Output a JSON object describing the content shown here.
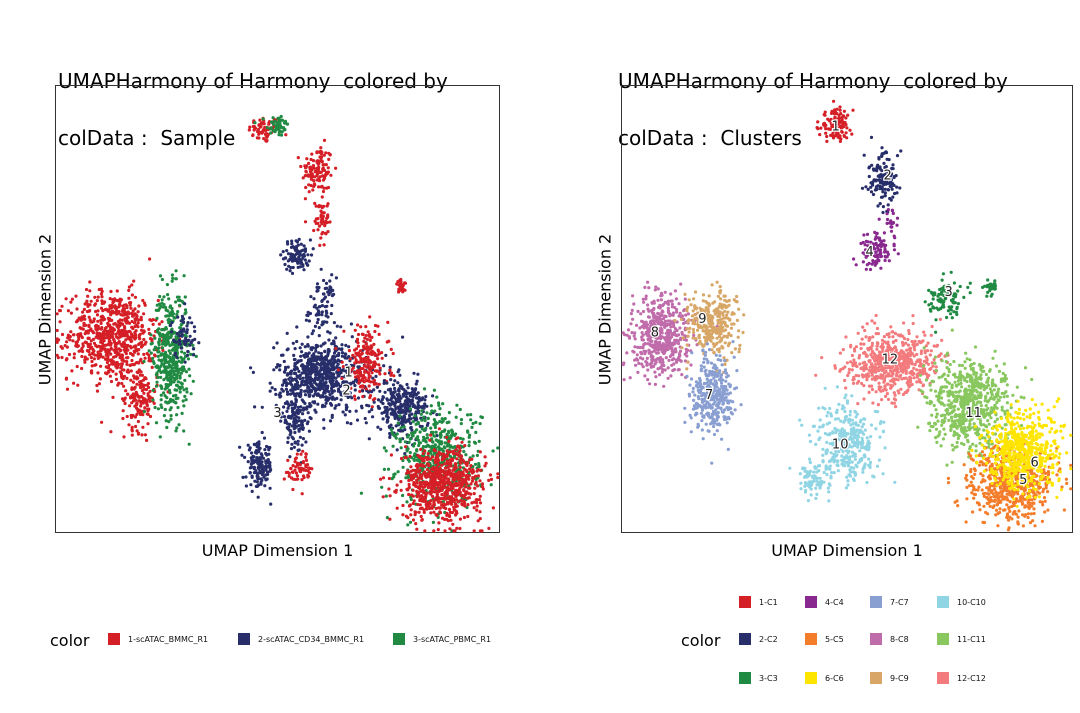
{
  "chart_data": [
    {
      "type": "scatter",
      "title_line1": "UMAPHarmony of Harmony  colored by",
      "title_line2": "colData :  Sample",
      "xlabel": "UMAP Dimension 1",
      "ylabel": "UMAP Dimension 2",
      "legend_title": "color",
      "legend_position": "bottom",
      "grid": false,
      "ticks": false,
      "groups": [
        {
          "name": "1-scATAC_BMMC_R1",
          "color": "#D51F26"
        },
        {
          "name": "2-scATAC_CD34_BMMC_R1",
          "color": "#272E6A"
        },
        {
          "name": "3-scATAC_PBMC_R1",
          "color": "#208A42"
        }
      ],
      "annotations": [
        {
          "text": "1",
          "x": 0.66,
          "y": 0.36
        },
        {
          "text": "2",
          "x": 0.655,
          "y": 0.32
        },
        {
          "text": "3",
          "x": 0.5,
          "y": 0.27
        }
      ],
      "clusters": [
        {
          "group": 0,
          "cx": 0.47,
          "cy": 0.9,
          "rx": 0.035,
          "ry": 0.03,
          "n": 60
        },
        {
          "group": 2,
          "cx": 0.5,
          "cy": 0.91,
          "rx": 0.025,
          "ry": 0.025,
          "n": 50
        },
        {
          "group": 0,
          "cx": 0.59,
          "cy": 0.81,
          "rx": 0.035,
          "ry": 0.055,
          "n": 120
        },
        {
          "group": 0,
          "cx": 0.6,
          "cy": 0.7,
          "rx": 0.015,
          "ry": 0.06,
          "n": 50
        },
        {
          "group": 1,
          "cx": 0.545,
          "cy": 0.62,
          "rx": 0.03,
          "ry": 0.035,
          "n": 90
        },
        {
          "group": 1,
          "cx": 0.6,
          "cy": 0.5,
          "rx": 0.03,
          "ry": 0.07,
          "n": 80
        },
        {
          "group": 0,
          "cx": 0.78,
          "cy": 0.55,
          "rx": 0.015,
          "ry": 0.015,
          "n": 30
        },
        {
          "group": 0,
          "cx": 0.13,
          "cy": 0.44,
          "rx": 0.1,
          "ry": 0.1,
          "n": 700
        },
        {
          "group": 0,
          "cx": 0.19,
          "cy": 0.3,
          "rx": 0.04,
          "ry": 0.07,
          "n": 150
        },
        {
          "group": 2,
          "cx": 0.26,
          "cy": 0.4,
          "rx": 0.04,
          "ry": 0.14,
          "n": 450
        },
        {
          "group": 1,
          "cx": 0.29,
          "cy": 0.44,
          "rx": 0.03,
          "ry": 0.05,
          "n": 60
        },
        {
          "group": 1,
          "cx": 0.6,
          "cy": 0.35,
          "rx": 0.1,
          "ry": 0.08,
          "n": 700
        },
        {
          "group": 0,
          "cx": 0.7,
          "cy": 0.38,
          "rx": 0.05,
          "ry": 0.08,
          "n": 200
        },
        {
          "group": 1,
          "cx": 0.54,
          "cy": 0.25,
          "rx": 0.03,
          "ry": 0.06,
          "n": 120
        },
        {
          "group": 1,
          "cx": 0.46,
          "cy": 0.15,
          "rx": 0.03,
          "ry": 0.05,
          "n": 150
        },
        {
          "group": 0,
          "cx": 0.55,
          "cy": 0.14,
          "rx": 0.03,
          "ry": 0.04,
          "n": 60
        },
        {
          "group": 1,
          "cx": 0.78,
          "cy": 0.28,
          "rx": 0.06,
          "ry": 0.06,
          "n": 300
        },
        {
          "group": 2,
          "cx": 0.86,
          "cy": 0.17,
          "rx": 0.095,
          "ry": 0.11,
          "n": 500
        },
        {
          "group": 0,
          "cx": 0.87,
          "cy": 0.11,
          "rx": 0.09,
          "ry": 0.08,
          "n": 700
        }
      ]
    },
    {
      "type": "scatter",
      "title_line1": "UMAPHarmony of Harmony  colored by",
      "title_line2": "colData :  Clusters",
      "xlabel": "UMAP Dimension 1",
      "ylabel": "UMAP Dimension 2",
      "legend_title": "color",
      "legend_position": "bottom",
      "grid": false,
      "ticks": false,
      "groups": [
        {
          "name": "1-C1",
          "color": "#D51F26"
        },
        {
          "name": "2-C2",
          "color": "#272E6A"
        },
        {
          "name": "3-C3",
          "color": "#208A42"
        },
        {
          "name": "4-C4",
          "color": "#89288F"
        },
        {
          "name": "5-C5",
          "color": "#F47D2B"
        },
        {
          "name": "6-C6",
          "color": "#FEE500"
        },
        {
          "name": "7-C7",
          "color": "#8A9FD1"
        },
        {
          "name": "8-C8",
          "color": "#C06CAB"
        },
        {
          "name": "9-C9",
          "color": "#D8A767"
        },
        {
          "name": "10-C10",
          "color": "#90D5E4"
        },
        {
          "name": "11-C11",
          "color": "#89C75F"
        },
        {
          "name": "12-C12",
          "color": "#F37B7D"
        }
      ],
      "annotations": [
        {
          "text": "1",
          "x": 0.475,
          "y": 0.91
        },
        {
          "text": "2",
          "x": 0.59,
          "y": 0.8
        },
        {
          "text": "4",
          "x": 0.55,
          "y": 0.63
        },
        {
          "text": "3",
          "x": 0.725,
          "y": 0.54
        },
        {
          "text": "8",
          "x": 0.075,
          "y": 0.45
        },
        {
          "text": "9",
          "x": 0.18,
          "y": 0.48
        },
        {
          "text": "12",
          "x": 0.595,
          "y": 0.39
        },
        {
          "text": "7",
          "x": 0.195,
          "y": 0.31
        },
        {
          "text": "11",
          "x": 0.78,
          "y": 0.27
        },
        {
          "text": "10",
          "x": 0.485,
          "y": 0.2
        },
        {
          "text": "6",
          "x": 0.915,
          "y": 0.16
        },
        {
          "text": "5",
          "x": 0.89,
          "y": 0.12
        }
      ],
      "clusters": [
        {
          "group": 0,
          "cx": 0.475,
          "cy": 0.91,
          "rx": 0.035,
          "ry": 0.035,
          "n": 120
        },
        {
          "group": 1,
          "cx": 0.58,
          "cy": 0.79,
          "rx": 0.04,
          "ry": 0.06,
          "n": 130
        },
        {
          "group": 3,
          "cx": 0.56,
          "cy": 0.63,
          "rx": 0.035,
          "ry": 0.04,
          "n": 100
        },
        {
          "group": 3,
          "cx": 0.6,
          "cy": 0.69,
          "rx": 0.01,
          "ry": 0.04,
          "n": 25
        },
        {
          "group": 2,
          "cx": 0.72,
          "cy": 0.52,
          "rx": 0.04,
          "ry": 0.05,
          "n": 90
        },
        {
          "group": 2,
          "cx": 0.82,
          "cy": 0.55,
          "rx": 0.015,
          "ry": 0.015,
          "n": 30
        },
        {
          "group": 7,
          "cx": 0.09,
          "cy": 0.44,
          "rx": 0.065,
          "ry": 0.09,
          "n": 500
        },
        {
          "group": 8,
          "cx": 0.2,
          "cy": 0.47,
          "rx": 0.055,
          "ry": 0.07,
          "n": 300
        },
        {
          "group": 6,
          "cx": 0.2,
          "cy": 0.31,
          "rx": 0.045,
          "ry": 0.09,
          "n": 350
        },
        {
          "group": 11,
          "cx": 0.6,
          "cy": 0.38,
          "rx": 0.1,
          "ry": 0.07,
          "n": 600
        },
        {
          "group": 10,
          "cx": 0.77,
          "cy": 0.29,
          "rx": 0.09,
          "ry": 0.1,
          "n": 650
        },
        {
          "group": 9,
          "cx": 0.5,
          "cy": 0.2,
          "rx": 0.07,
          "ry": 0.09,
          "n": 350
        },
        {
          "group": 9,
          "cx": 0.42,
          "cy": 0.12,
          "rx": 0.03,
          "ry": 0.04,
          "n": 70
        },
        {
          "group": 4,
          "cx": 0.86,
          "cy": 0.11,
          "rx": 0.09,
          "ry": 0.08,
          "n": 600
        },
        {
          "group": 5,
          "cx": 0.89,
          "cy": 0.18,
          "rx": 0.08,
          "ry": 0.09,
          "n": 600
        }
      ]
    }
  ]
}
